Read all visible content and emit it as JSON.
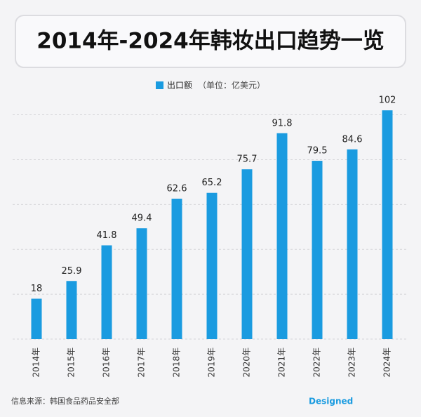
{
  "chart_data": {
    "type": "bar",
    "title": "2014年-2024年韩妆出口趋势一览",
    "unit_note": "（单位：亿美元）",
    "categories": [
      "2014年",
      "2015年",
      "2016年",
      "2017年",
      "2018年",
      "2019年",
      "2020年",
      "2021年",
      "2022年",
      "2023年",
      "2024年"
    ],
    "series": [
      {
        "name": "出口额",
        "color": "#1a9be0",
        "values": [
          18,
          25.9,
          41.8,
          49.4,
          62.6,
          65.2,
          75.7,
          91.8,
          79.5,
          84.6,
          102
        ]
      }
    ],
    "ylim": [
      0,
      108
    ],
    "yticks": [
      0,
      20,
      40,
      60,
      80,
      100
    ],
    "grid": true,
    "source": "信息来源：韩国食品药品安全部",
    "credit": "Designed"
  }
}
